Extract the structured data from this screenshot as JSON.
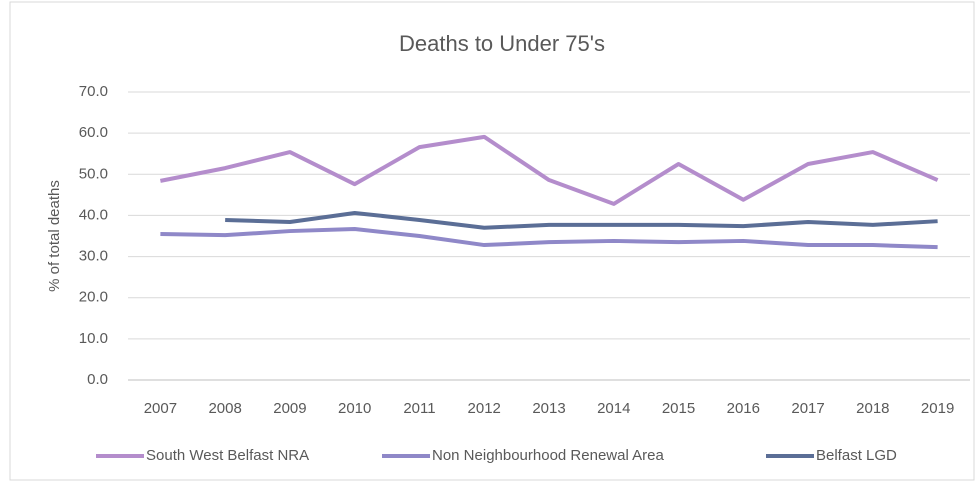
{
  "chart_data": {
    "type": "line",
    "title": "Deaths to Under 75's",
    "y_label": "% of total deaths",
    "categories": [
      "2007",
      "2008",
      "2009",
      "2010",
      "2011",
      "2012",
      "2013",
      "2014",
      "2015",
      "2016",
      "2017",
      "2018",
      "2019"
    ],
    "series": [
      {
        "name": "South West Belfast NRA",
        "color": "#b48dcc",
        "values": [
          48.4,
          51.5,
          55.4,
          47.6,
          56.6,
          59.1,
          48.6,
          42.8,
          52.5,
          43.8,
          52.5,
          55.4,
          48.6
        ]
      },
      {
        "name": "Non Neighbourhood Renewal Area",
        "color": "#8f88c8",
        "values": [
          35.5,
          35.2,
          36.2,
          36.7,
          35.0,
          32.8,
          33.5,
          33.8,
          33.5,
          33.8,
          32.8,
          32.8,
          32.3
        ]
      },
      {
        "name": "Belfast LGD",
        "color": "#5b6e96",
        "values": [
          null,
          38.9,
          38.4,
          40.6,
          38.9,
          37.0,
          37.7,
          37.7,
          37.7,
          37.4,
          38.4,
          37.7,
          38.6
        ]
      }
    ],
    "ylim": [
      0,
      70
    ],
    "yticks": [
      {
        "value": 0,
        "label": "0.0"
      },
      {
        "value": 10,
        "label": "10.0"
      },
      {
        "value": 20,
        "label": "20.0"
      },
      {
        "value": 30,
        "label": "30.0"
      },
      {
        "value": 40,
        "label": "40.0"
      },
      {
        "value": 50,
        "label": "50.0"
      },
      {
        "value": 60,
        "label": "60.0"
      },
      {
        "value": 70,
        "label": "70.0"
      }
    ],
    "grid": true,
    "legend": "bottom"
  }
}
